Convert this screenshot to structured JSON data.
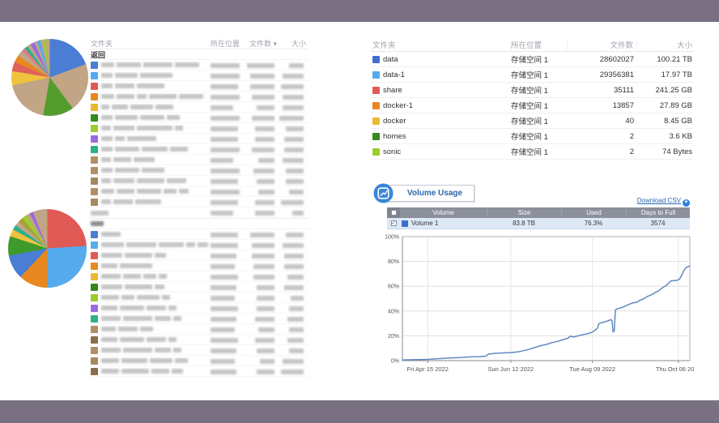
{
  "frame": {
    "border_color": "#797182",
    "content_bg": "#ffffff"
  },
  "left": {
    "top_list": {
      "headers": {
        "folder": "文件夹",
        "location": "所在位置",
        "count": "文件数",
        "size": "大小"
      },
      "sort_indicator": "▾",
      "back_label": "返回",
      "blurred_rows": [
        {
          "c": "#4a7dd3",
          "n": [
            16,
            30,
            36,
            30
          ],
          "loc": 36,
          "cnt": 34,
          "sz": 18
        },
        {
          "c": "#56aaee",
          "n": [
            14,
            28,
            40
          ],
          "loc": 36,
          "cnt": 30,
          "sz": 26
        },
        {
          "c": "#e05a55",
          "n": [
            14,
            24,
            34
          ],
          "loc": 34,
          "cnt": 30,
          "sz": 28
        },
        {
          "c": "#e8881e",
          "n": [
            16,
            22,
            12,
            34,
            30
          ],
          "loc": 36,
          "cnt": 28,
          "sz": 26
        },
        {
          "c": "#ecb832",
          "n": [
            10,
            20,
            28,
            22
          ],
          "loc": 28,
          "cnt": 22,
          "sz": 26
        },
        {
          "c": "#338a1e",
          "n": [
            14,
            28,
            30,
            16
          ],
          "loc": 36,
          "cnt": 28,
          "sz": 30
        },
        {
          "c": "#9ccc2e",
          "n": [
            12,
            26,
            44,
            10
          ],
          "loc": 34,
          "cnt": 24,
          "sz": 22
        },
        {
          "c": "#9b6ae0",
          "n": [
            14,
            12,
            36
          ],
          "loc": 34,
          "cnt": 24,
          "sz": 24
        },
        {
          "c": "#2eb08a",
          "n": [
            14,
            30,
            32,
            22
          ],
          "loc": 36,
          "cnt": 28,
          "sz": 24
        },
        {
          "c": "#b08f66",
          "n": [
            12,
            22,
            26
          ],
          "loc": 28,
          "cnt": 20,
          "sz": 26
        },
        {
          "c": "#b08f66",
          "n": [
            14,
            30,
            28
          ],
          "loc": 36,
          "cnt": 26,
          "sz": 22
        },
        {
          "c": "#a5895f",
          "n": [
            12,
            26,
            34,
            24
          ],
          "loc": 34,
          "cnt": 22,
          "sz": 22
        },
        {
          "c": "#b08f66",
          "n": [
            16,
            22,
            30,
            16,
            12
          ],
          "loc": 36,
          "cnt": 20,
          "sz": 18
        },
        {
          "c": "#a5895f",
          "n": [
            12,
            24,
            32
          ],
          "loc": 34,
          "cnt": 24,
          "sz": 28
        }
      ]
    },
    "bottom_list": {
      "header_bars": {
        "n": [
          22
        ],
        "loc": 28,
        "cnt": 24,
        "sz": 14
      },
      "back_bar": 16,
      "blurred_rows": [
        {
          "c": "#4a7dd3",
          "n": [
            24
          ],
          "loc": 34,
          "cnt": 30,
          "sz": 22
        },
        {
          "c": "#56aaee",
          "n": [
            30,
            40,
            34,
            12,
            14
          ],
          "loc": 34,
          "cnt": 28,
          "sz": 26
        },
        {
          "c": "#e05a55",
          "n": [
            26,
            34,
            14
          ],
          "loc": 32,
          "cnt": 28,
          "sz": 24
        },
        {
          "c": "#e8881e",
          "n": [
            20,
            40
          ],
          "loc": 30,
          "cnt": 26,
          "sz": 24
        },
        {
          "c": "#ecb832",
          "n": [
            24,
            22,
            16,
            10
          ],
          "loc": 34,
          "cnt": 26,
          "sz": 20
        },
        {
          "c": "#338a1e",
          "n": [
            26,
            34,
            12
          ],
          "loc": 32,
          "cnt": 22,
          "sz": 24
        },
        {
          "c": "#9ccc2e",
          "n": [
            22,
            16,
            28,
            10
          ],
          "loc": 30,
          "cnt": 22,
          "sz": 16
        },
        {
          "c": "#9b6ae0",
          "n": [
            20,
            30,
            24,
            10
          ],
          "loc": 34,
          "cnt": 22,
          "sz": 18
        },
        {
          "c": "#2eb08a",
          "n": [
            24,
            36,
            20,
            10
          ],
          "loc": 32,
          "cnt": 24,
          "sz": 20
        },
        {
          "c": "#b08f66",
          "n": [
            18,
            24,
            16
          ],
          "loc": 30,
          "cnt": 20,
          "sz": 18
        },
        {
          "c": "#8a6d4a",
          "n": [
            20,
            30,
            24,
            10
          ],
          "loc": 34,
          "cnt": 24,
          "sz": 20
        },
        {
          "c": "#b08f66",
          "n": [
            24,
            36,
            20,
            10
          ],
          "loc": 32,
          "cnt": 22,
          "sz": 18
        },
        {
          "c": "#a5895f",
          "n": [
            22,
            32,
            28,
            16
          ],
          "loc": 30,
          "cnt": 18,
          "sz": 26
        },
        {
          "c": "#8a6d4a",
          "n": [
            22,
            34,
            22,
            14
          ],
          "loc": 32,
          "cnt": 22,
          "sz": 28
        }
      ]
    }
  },
  "folder_table": {
    "headers": {
      "folder": "文件夹",
      "location": "所在位置",
      "count": "文件数",
      "size": "大小"
    },
    "rows": [
      {
        "name": "data",
        "color": "#3e6fce",
        "location": "存储空间 1",
        "count": "28602027",
        "size": "100.21 TB"
      },
      {
        "name": "data-1",
        "color": "#56aaee",
        "location": "存储空间 1",
        "count": "29356381",
        "size": "17.97 TB"
      },
      {
        "name": "share",
        "color": "#e05a55",
        "location": "存储空间 1",
        "count": "35111",
        "size": "241.25 GB"
      },
      {
        "name": "docker-1",
        "color": "#e8881e",
        "location": "存储空间 1",
        "count": "13857",
        "size": "27.89 GB"
      },
      {
        "name": "docker",
        "color": "#ecb832",
        "location": "存储空间 1",
        "count": "40",
        "size": "8.45 GB"
      },
      {
        "name": "homes",
        "color": "#338a1e",
        "location": "存储空间 1",
        "count": "2",
        "size": "3.6 KB"
      },
      {
        "name": "sonic",
        "color": "#9ccc2e",
        "location": "存储空间 1",
        "count": "2",
        "size": "74 Bytes"
      }
    ]
  },
  "volume_usage": {
    "title": "Volume Usage",
    "download_csv": "Download CSV",
    "accent_color": "#2a67b0",
    "table": {
      "headers": {
        "volume": "Volume",
        "size": "Size",
        "used": "Used",
        "days_to_full": "Days to Full"
      },
      "rows": [
        {
          "name": "Volume 1",
          "color": "#3e6fce",
          "size": "83.8 TB",
          "used": "76.3%",
          "days_to_full": "3574",
          "checked": true
        }
      ]
    }
  },
  "chart_data": [
    {
      "type": "line",
      "title": "Volume 1 usage history",
      "ylim": [
        0,
        100
      ],
      "grid": true,
      "legend_position": "none",
      "y_ticks": [
        "0%",
        "20%",
        "40%",
        "60%",
        "80%",
        "100%"
      ],
      "x_ticks": [
        {
          "label": "Fri Apr 15 2022",
          "pos": 0.088
        },
        {
          "label": "Sun Jun 12 2022",
          "pos": 0.377
        },
        {
          "label": "Tue Aug 09 2022",
          "pos": 0.661
        },
        {
          "label": "Thu Oct 06 2022",
          "pos": 0.96
        }
      ],
      "series": [
        {
          "name": "Volume 1",
          "color": "#6288c4",
          "points": [
            [
              0,
              0.5
            ],
            [
              0.03,
              0.7
            ],
            [
              0.06,
              0.8
            ],
            [
              0.088,
              1
            ],
            [
              0.12,
              1.5
            ],
            [
              0.16,
              2
            ],
            [
              0.2,
              2.5
            ],
            [
              0.24,
              3
            ],
            [
              0.27,
              3.2
            ],
            [
              0.29,
              3.6
            ],
            [
              0.3,
              5.3
            ],
            [
              0.32,
              5.8
            ],
            [
              0.35,
              6.2
            ],
            [
              0.377,
              6.5
            ],
            [
              0.4,
              7
            ],
            [
              0.42,
              8
            ],
            [
              0.44,
              9
            ],
            [
              0.46,
              10.5
            ],
            [
              0.48,
              12
            ],
            [
              0.5,
              13
            ],
            [
              0.52,
              14.5
            ],
            [
              0.54,
              15.5
            ],
            [
              0.56,
              17
            ],
            [
              0.575,
              18
            ],
            [
              0.585,
              19.8
            ],
            [
              0.595,
              19
            ],
            [
              0.605,
              19.6
            ],
            [
              0.62,
              20.5
            ],
            [
              0.64,
              21.5
            ],
            [
              0.655,
              22.5
            ],
            [
              0.661,
              23
            ],
            [
              0.67,
              24.5
            ],
            [
              0.678,
              26
            ],
            [
              0.683,
              29.5
            ],
            [
              0.69,
              30.5
            ],
            [
              0.7,
              31
            ],
            [
              0.715,
              32
            ],
            [
              0.725,
              33
            ],
            [
              0.729,
              32.5
            ],
            [
              0.733,
              23
            ],
            [
              0.737,
              24
            ],
            [
              0.741,
              41
            ],
            [
              0.75,
              42
            ],
            [
              0.76,
              42.5
            ],
            [
              0.775,
              44
            ],
            [
              0.79,
              45.5
            ],
            [
              0.8,
              46.5
            ],
            [
              0.815,
              47
            ],
            [
              0.825,
              48.5
            ],
            [
              0.84,
              50
            ],
            [
              0.85,
              51.5
            ],
            [
              0.86,
              52.5
            ],
            [
              0.87,
              53.5
            ],
            [
              0.88,
              55
            ],
            [
              0.89,
              56
            ],
            [
              0.9,
              58
            ],
            [
              0.91,
              59.5
            ],
            [
              0.92,
              61
            ],
            [
              0.928,
              63
            ],
            [
              0.935,
              64.3
            ],
            [
              0.945,
              64.5
            ],
            [
              0.955,
              64.7
            ],
            [
              0.96,
              65.2
            ],
            [
              0.965,
              66
            ],
            [
              0.972,
              69
            ],
            [
              0.98,
              73
            ],
            [
              0.988,
              75.3
            ],
            [
              1,
              76.3
            ]
          ]
        }
      ]
    },
    {
      "type": "pie",
      "title": "top folder size distribution",
      "slices": [
        [
          "#4a7dd3",
          19.5
        ],
        [
          "#c1a585",
          20.5
        ],
        [
          "#549c2e",
          13
        ],
        [
          "#c1a585",
          19
        ],
        [
          "#efc23e",
          6
        ],
        [
          "#e0625c",
          4
        ],
        [
          "#e8881e",
          3
        ],
        [
          "#c1a585",
          2.5
        ],
        [
          "#e07a85",
          1.5
        ],
        [
          "#2eb08a",
          1.5
        ],
        [
          "#c1a585",
          1.5
        ],
        [
          "#9b6ae0",
          1.8
        ],
        [
          "#c1a585",
          1.2
        ],
        [
          "#56aaee",
          1.5
        ],
        [
          "#c1a585",
          1.0
        ],
        [
          "#9ccc2e",
          1.2
        ],
        [
          "#c1a585",
          1.8
        ]
      ]
    },
    {
      "type": "pie",
      "title": "bottom folder size distribution",
      "slices": [
        [
          "#e05a55",
          24
        ],
        [
          "#56aaee",
          26
        ],
        [
          "#e8881e",
          12
        ],
        [
          "#4a7dd3",
          10
        ],
        [
          "#3f9a2e",
          8
        ],
        [
          "#efc23e",
          3
        ],
        [
          "#2eb08a",
          2
        ],
        [
          "#c1a585",
          2
        ],
        [
          "#a8a23a",
          2
        ],
        [
          "#9ccc2e",
          2
        ],
        [
          "#c1a585",
          1.5
        ],
        [
          "#9b6ae0",
          1.5
        ],
        [
          "#c1a585",
          6
        ]
      ]
    }
  ]
}
